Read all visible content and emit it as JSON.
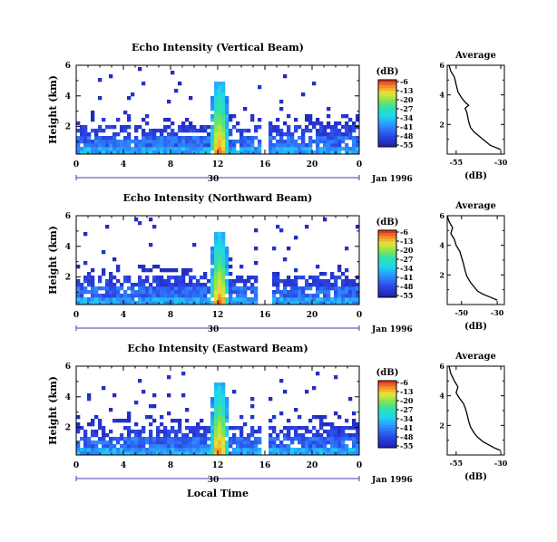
{
  "figure": {
    "xlabel": "Local Time",
    "date_label": "Jan 1996",
    "day_label": "30",
    "cb_unit": "(dB)",
    "avg_title": "Average",
    "avg_xlabel": "(dB)"
  },
  "chart_data": [
    {
      "type": "heatmap",
      "title": "Echo Intensity (Vertical Beam)",
      "ylabel": "Height (km)",
      "x_ticks": [
        "0",
        "4",
        "8",
        "12",
        "16",
        "20",
        "0"
      ],
      "y_ticks": [
        "2",
        "4",
        "6"
      ],
      "xlim": [
        0,
        24
      ],
      "ylim": [
        0.2,
        6
      ],
      "colorbar": {
        "ticks": [
          "-6",
          "-13",
          "-20",
          "-27",
          "-34",
          "-41",
          "-48",
          "-55"
        ],
        "range": [
          -58,
          -4
        ]
      },
      "data_gap_hours": [
        [
          15.5,
          16.3
        ]
      ],
      "peak_hour": 12.0,
      "average_profile": {
        "x_ticks": [
          "-55",
          "-30"
        ],
        "y_ticks": [
          "2",
          "4",
          "6"
        ],
        "xlim": [
          -60,
          -28
        ],
        "ylim": [
          0,
          6
        ],
        "points": [
          [
            -30,
            0.3
          ],
          [
            -33,
            0.45
          ],
          [
            -36,
            0.6
          ],
          [
            -38,
            0.8
          ],
          [
            -40,
            1.0
          ],
          [
            -42,
            1.2
          ],
          [
            -45,
            1.5
          ],
          [
            -47,
            1.8
          ],
          [
            -48,
            2.2
          ],
          [
            -49,
            2.8
          ],
          [
            -50,
            3.1
          ],
          [
            -48,
            3.3
          ],
          [
            -50,
            3.5
          ],
          [
            -52,
            3.8
          ],
          [
            -54,
            4.2
          ],
          [
            -55,
            4.7
          ],
          [
            -56,
            5.2
          ],
          [
            -58,
            5.6
          ],
          [
            -59,
            6.0
          ]
        ]
      }
    },
    {
      "type": "heatmap",
      "title": "Echo Intensity (Northward Beam)",
      "ylabel": "Height (km)",
      "x_ticks": [
        "0",
        "4",
        "8",
        "12",
        "16",
        "20",
        "0"
      ],
      "y_ticks": [
        "2",
        "4",
        "6"
      ],
      "xlim": [
        0,
        24
      ],
      "ylim": [
        0.2,
        6
      ],
      "colorbar": {
        "ticks": [
          "-6",
          "-13",
          "-20",
          "-27",
          "-34",
          "-41",
          "-48",
          "-55"
        ],
        "range": [
          -58,
          -4
        ]
      },
      "data_gap_hours": [
        [
          15.3,
          16.4
        ]
      ],
      "peak_hour": 12.0,
      "average_profile": {
        "x_ticks": [
          "-50",
          "-30"
        ],
        "y_ticks": [
          "2",
          "4",
          "6"
        ],
        "xlim": [
          -58,
          -26
        ],
        "ylim": [
          0,
          6
        ],
        "points": [
          [
            -30,
            0.3
          ],
          [
            -34,
            0.5
          ],
          [
            -38,
            0.7
          ],
          [
            -41,
            0.9
          ],
          [
            -43,
            1.2
          ],
          [
            -45,
            1.5
          ],
          [
            -47,
            1.9
          ],
          [
            -48,
            2.3
          ],
          [
            -49,
            2.8
          ],
          [
            -50,
            3.2
          ],
          [
            -51,
            3.6
          ],
          [
            -53,
            4.0
          ],
          [
            -54,
            4.4
          ],
          [
            -56,
            4.8
          ],
          [
            -55,
            5.2
          ],
          [
            -57,
            5.6
          ],
          [
            -58,
            6.0
          ]
        ]
      }
    },
    {
      "type": "heatmap",
      "title": "Echo Intensity (Eastward Beam)",
      "ylabel": "Height (km)",
      "x_ticks": [
        "0",
        "4",
        "8",
        "12",
        "16",
        "20",
        "0"
      ],
      "y_ticks": [
        "2",
        "4",
        "6"
      ],
      "xlim": [
        0,
        24
      ],
      "ylim": [
        0.2,
        6
      ],
      "colorbar": {
        "ticks": [
          "-6",
          "-13",
          "-20",
          "-27",
          "-34",
          "-41",
          "-48",
          "-55"
        ],
        "range": [
          -58,
          -4
        ]
      },
      "data_gap_hours": [
        [
          15.5,
          16.3
        ]
      ],
      "peak_hour": 12.0,
      "average_profile": {
        "x_ticks": [
          "-55",
          "-30"
        ],
        "y_ticks": [
          "2",
          "4",
          "6"
        ],
        "xlim": [
          -60,
          -28
        ],
        "ylim": [
          0,
          6
        ],
        "points": [
          [
            -30,
            0.3
          ],
          [
            -34,
            0.5
          ],
          [
            -37,
            0.7
          ],
          [
            -40,
            0.9
          ],
          [
            -43,
            1.2
          ],
          [
            -45,
            1.5
          ],
          [
            -47,
            1.9
          ],
          [
            -48,
            2.3
          ],
          [
            -49,
            2.8
          ],
          [
            -50,
            3.2
          ],
          [
            -51,
            3.5
          ],
          [
            -53,
            3.8
          ],
          [
            -55,
            4.2
          ],
          [
            -54,
            4.6
          ],
          [
            -56,
            5.0
          ],
          [
            -58,
            5.5
          ],
          [
            -59,
            6.0
          ]
        ]
      }
    }
  ]
}
